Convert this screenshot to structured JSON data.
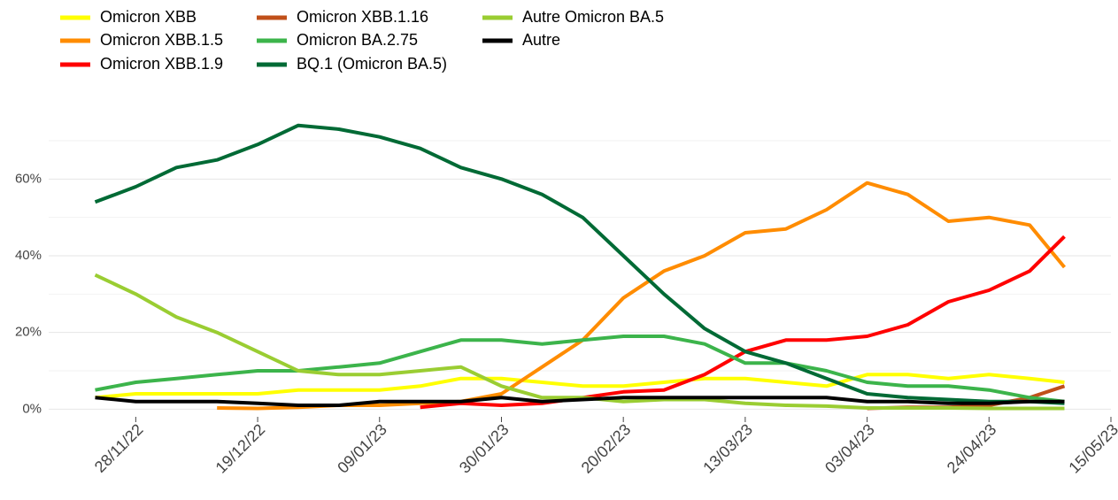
{
  "chart_data": {
    "type": "line",
    "x": [
      "2022-11-21",
      "2022-11-28",
      "2022-12-05",
      "2022-12-12",
      "2022-12-19",
      "2022-12-26",
      "2023-01-02",
      "2023-01-09",
      "2023-01-16",
      "2023-01-23",
      "2023-01-30",
      "2023-02-06",
      "2023-02-13",
      "2023-02-20",
      "2023-02-27",
      "2023-03-06",
      "2023-03-13",
      "2023-03-20",
      "2023-03-27",
      "2023-04-03",
      "2023-04-10",
      "2023-04-17",
      "2023-04-24",
      "2023-05-01",
      "2023-05-07"
    ],
    "series": [
      {
        "name": "Omicron XBB",
        "color": "#ffff00",
        "values": [
          3,
          4,
          4,
          4,
          4,
          5,
          5,
          5,
          6,
          8,
          8,
          7,
          6,
          6,
          7,
          8,
          8,
          7,
          6,
          9,
          9,
          8,
          9,
          8,
          7
        ]
      },
      {
        "name": "Omicron XBB.1.5",
        "color": "#ff8c00",
        "values": [
          null,
          null,
          null,
          0.3,
          0.2,
          0.5,
          1,
          1,
          1.5,
          2,
          4,
          11,
          18,
          29,
          36,
          40,
          46,
          47,
          52,
          59,
          56,
          49,
          50,
          48,
          37
        ]
      },
      {
        "name": "Omicron XBB.1.9",
        "color": "#ff0000",
        "values": [
          null,
          null,
          null,
          null,
          null,
          null,
          null,
          null,
          0.5,
          1.5,
          1,
          1.5,
          3,
          4.5,
          5,
          9,
          15,
          18,
          18,
          19,
          22,
          28,
          31,
          36,
          45
        ]
      },
      {
        "name": "Omicron XBB.1.16",
        "color": "#c0501a",
        "values": [
          null,
          null,
          null,
          null,
          null,
          null,
          null,
          null,
          null,
          null,
          null,
          null,
          null,
          null,
          null,
          null,
          null,
          null,
          null,
          0.2,
          0.5,
          0.5,
          1,
          3,
          6
        ]
      },
      {
        "name": "Omicron BA.2.75",
        "color": "#3cb44b",
        "values": [
          5,
          7,
          8,
          9,
          10,
          10,
          11,
          12,
          15,
          18,
          18,
          17,
          18,
          19,
          19,
          17,
          12,
          12,
          10,
          7,
          6,
          6,
          5,
          3,
          2
        ]
      },
      {
        "name": "BQ.1 (Omicron BA.5)",
        "color": "#006a35",
        "values": [
          54,
          58,
          63,
          65,
          69,
          74,
          73,
          71,
          68,
          63,
          60,
          56,
          50,
          40,
          30,
          21,
          15,
          12,
          8,
          4,
          3,
          2.5,
          2,
          2,
          1.5
        ]
      },
      {
        "name": "Autre Omicron BA.5",
        "color": "#9acd32",
        "values": [
          35,
          30,
          24,
          20,
          15,
          10,
          9,
          9,
          10,
          11,
          6,
          3,
          3,
          2,
          2.5,
          2.5,
          1.5,
          1,
          0.8,
          0.3,
          0.3,
          0.3,
          0.2,
          0.2,
          0.2
        ]
      },
      {
        "name": "Autre",
        "color": "#000000",
        "values": [
          3,
          2,
          2,
          2,
          1.5,
          1,
          1,
          2,
          2,
          2,
          3,
          2,
          2.5,
          3,
          3,
          3,
          3,
          3,
          3,
          2,
          2,
          1.5,
          1.5,
          2,
          2
        ]
      }
    ],
    "xlim": [
      "2022-11-13",
      "2023-05-15"
    ],
    "xticks": [
      {
        "value": "2022-11-28",
        "label": "28/11/22"
      },
      {
        "value": "2022-12-19",
        "label": "19/12/22"
      },
      {
        "value": "2023-01-09",
        "label": "09/01/23"
      },
      {
        "value": "2023-01-30",
        "label": "30/01/23"
      },
      {
        "value": "2023-02-20",
        "label": "20/02/23"
      },
      {
        "value": "2023-03-13",
        "label": "13/03/23"
      },
      {
        "value": "2023-04-03",
        "label": "03/04/23"
      },
      {
        "value": "2023-04-24",
        "label": "24/04/23"
      },
      {
        "value": "2023-05-15",
        "label": "15/05/23"
      }
    ],
    "ylim": [
      -2,
      76
    ],
    "yticks": [
      {
        "value": 0,
        "label": "0%"
      },
      {
        "value": 20,
        "label": "20%"
      },
      {
        "value": 40,
        "label": "40%"
      },
      {
        "value": 60,
        "label": "60%"
      }
    ],
    "minor_yticks": [
      10,
      30,
      50,
      70
    ],
    "grid": true
  }
}
